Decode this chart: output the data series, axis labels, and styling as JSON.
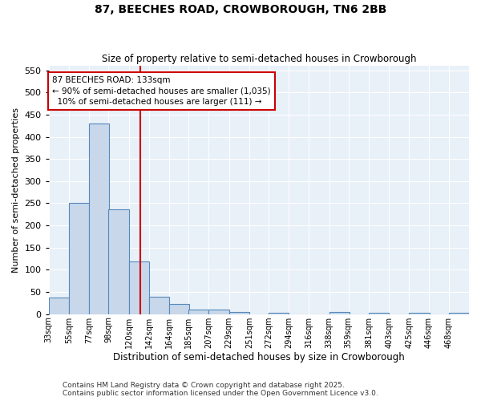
{
  "title": "87, BEECHES ROAD, CROWBOROUGH, TN6 2BB",
  "subtitle": "Size of property relative to semi-detached houses in Crowborough",
  "xlabel": "Distribution of semi-detached houses by size in Crowborough",
  "ylabel": "Number of semi-detached properties",
  "footnote1": "Contains HM Land Registry data © Crown copyright and database right 2025.",
  "footnote2": "Contains public sector information licensed under the Open Government Licence v3.0.",
  "bin_edges": [
    33,
    55,
    77,
    98,
    120,
    142,
    164,
    185,
    207,
    229,
    251,
    272,
    294,
    316,
    338,
    359,
    381,
    403,
    425,
    446,
    468
  ],
  "bar_heights": [
    38,
    250,
    430,
    236,
    118,
    40,
    23,
    10,
    10,
    5,
    0,
    3,
    0,
    0,
    5,
    0,
    3,
    0,
    3,
    0,
    3
  ],
  "bar_color": "#c8d8ea",
  "bar_edge_color": "#5588bb",
  "property_x": 133,
  "vline_color": "#cc0000",
  "annotation_line1": "87 BEECHES ROAD: 133sqm",
  "annotation_line2": "← 90% of semi-detached houses are smaller (1,035)",
  "annotation_line3": "  10% of semi-detached houses are larger (111) →",
  "annotation_box_color": "#cc0000",
  "background_color": "#e8f0f8",
  "ylim": [
    0,
    560
  ],
  "xlim": [
    33,
    490
  ],
  "tick_labels": [
    "33sqm",
    "55sqm",
    "77sqm",
    "98sqm",
    "120sqm",
    "142sqm",
    "164sqm",
    "185sqm",
    "207sqm",
    "229sqm",
    "251sqm",
    "272sqm",
    "294sqm",
    "316sqm",
    "338sqm",
    "359sqm",
    "381sqm",
    "403sqm",
    "425sqm",
    "446sqm",
    "468sqm"
  ],
  "yticks": [
    0,
    50,
    100,
    150,
    200,
    250,
    300,
    350,
    400,
    450,
    500,
    550
  ]
}
